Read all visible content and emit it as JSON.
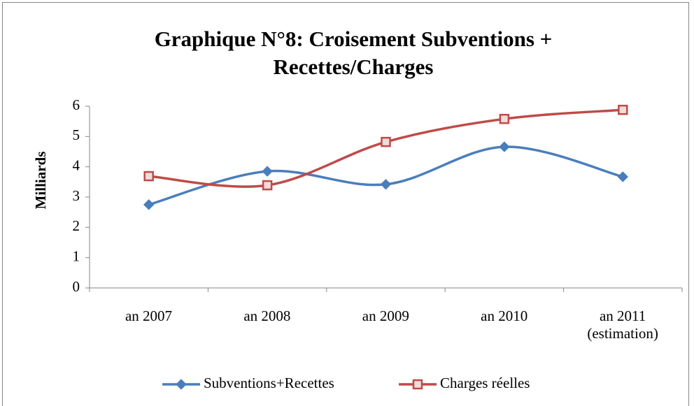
{
  "chart_data": {
    "type": "line",
    "title": "Graphique N°8: Croisement Subventions + Recettes/Charges",
    "ylabel": "Milliards",
    "categories": [
      "an 2007",
      "an 2008",
      "an 2009",
      "an 2010",
      "an 2011\n(estimation)"
    ],
    "series": [
      {
        "name": "Subventions+Recettes",
        "color": "#4a7ebb",
        "marker": "diamond",
        "values": [
          2.75,
          3.85,
          3.42,
          4.66,
          3.67
        ]
      },
      {
        "name": "Charges réelles",
        "color": "#be4b48",
        "marker": "square",
        "values": [
          3.69,
          3.39,
          4.82,
          5.58,
          5.88
        ]
      }
    ],
    "ylim": [
      0,
      6
    ],
    "yticks": [
      0,
      1,
      2,
      3,
      4,
      5,
      6
    ],
    "smooth": true,
    "grid": false,
    "legend": "bottom"
  }
}
